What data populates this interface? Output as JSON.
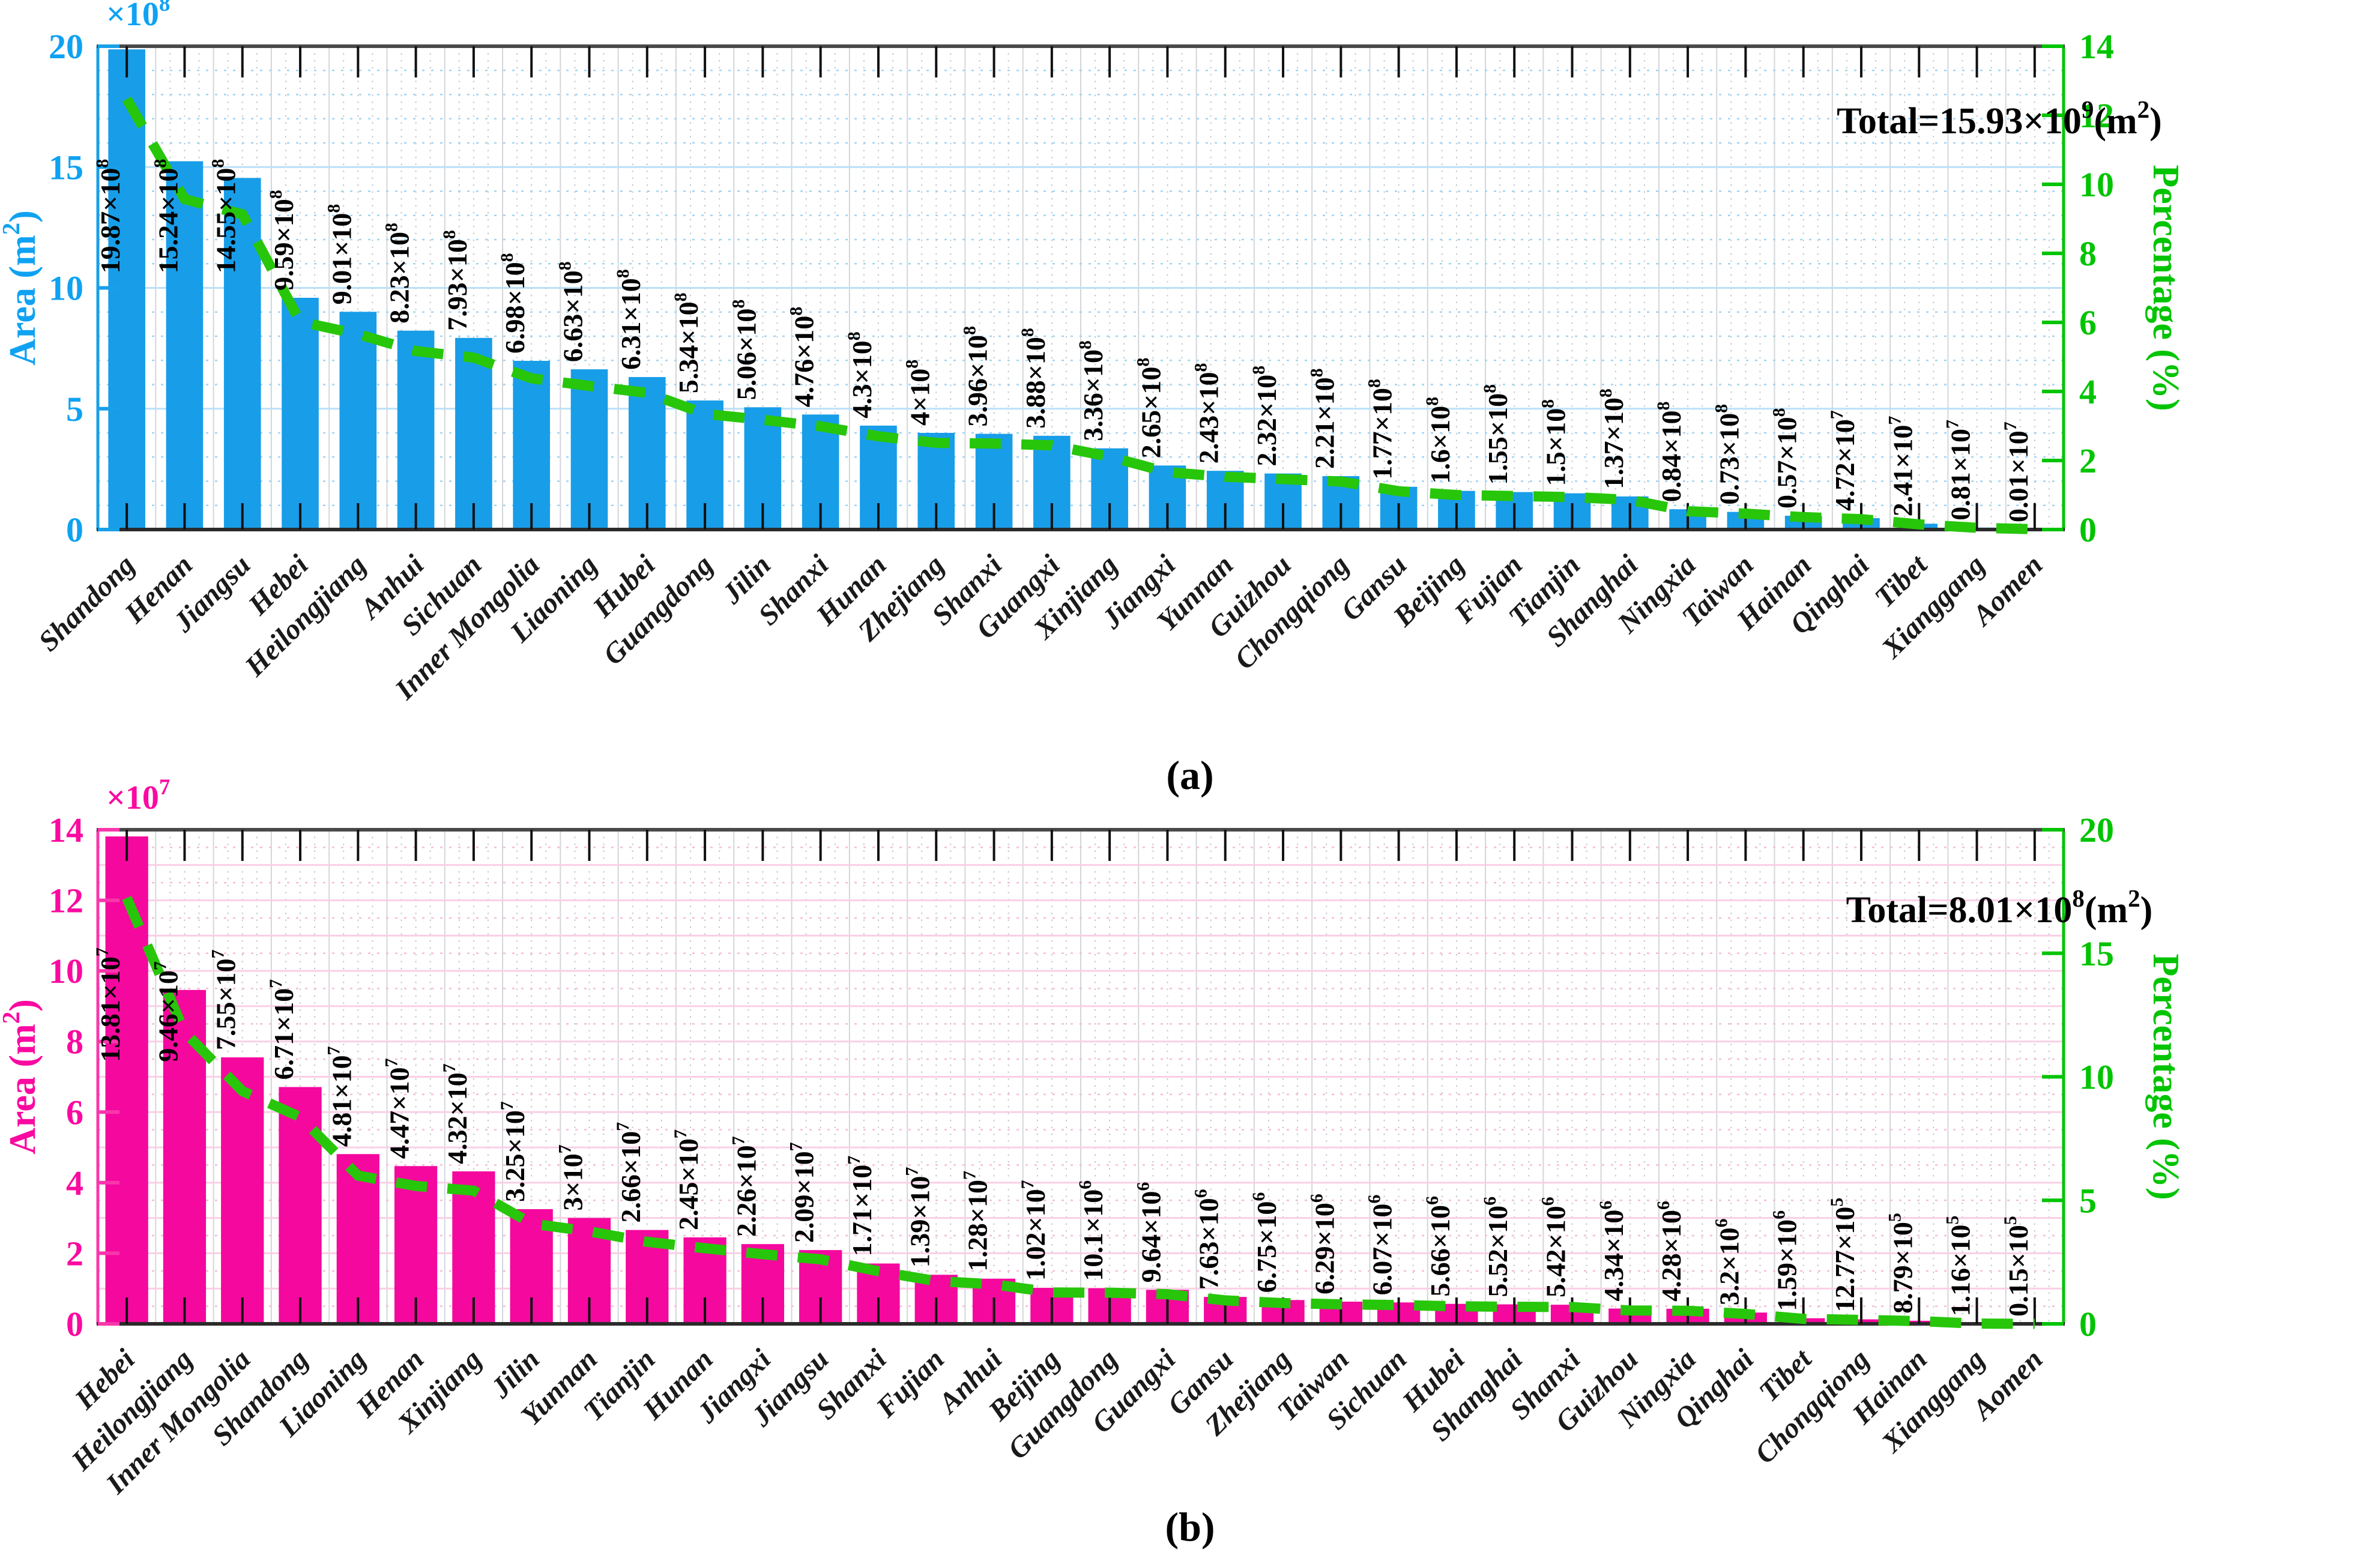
{
  "figure": {
    "caption_a": "(a)",
    "caption_b": "(b)"
  },
  "chart_data": [
    {
      "type": "bar",
      "panel": "a",
      "total_label": "Total=15.93×10^9(m^2)",
      "ylabel_left": "Area (m^2)",
      "ylabel_right": "Percentage (%)",
      "scale_label": "×10^8",
      "ylim_left": [
        0,
        20
      ],
      "yticks_left": [
        0,
        5,
        10,
        15,
        20
      ],
      "ylim_right": [
        0,
        14
      ],
      "yticks_right": [
        0,
        2,
        4,
        6,
        8,
        10,
        12,
        14
      ],
      "grid": "on",
      "legend": "none",
      "bar_color": "#189DE8",
      "axis_text_color": "#0FA2F2",
      "spine_color": "#18A0E8",
      "line_color": "#27C60A",
      "right_axis_color": "#00C400",
      "grid_major_color": "#BBE0F8",
      "grid_minor_color": "#9FD4F4",
      "categories": [
        "Shandong",
        "Henan",
        "Jiangsu",
        "Hebei",
        "Heilongjiang",
        "Anhui",
        "Sichuan",
        "Inner Mongolia",
        "Liaoning",
        "Hubei",
        "Guangdong",
        "Jilin",
        "Shanxi",
        "Hunan",
        "Zhejiang",
        "Shanxi",
        "Guangxi",
        "Xinjiang",
        "Jiangxi",
        "Yunnan",
        "Guizhou",
        "Chongqiong",
        "Gansu",
        "Beijing",
        "Fujian",
        "Tianjin",
        "Shanghai",
        "Ningxia",
        "Taiwan",
        "Hainan",
        "Qinghai",
        "Tibet",
        "Xianggang",
        "Aomen"
      ],
      "values": [
        19.87,
        15.24,
        14.55,
        9.59,
        9.01,
        8.23,
        7.93,
        6.98,
        6.63,
        6.31,
        5.34,
        5.06,
        4.76,
        4.3,
        4,
        3.96,
        3.88,
        3.36,
        2.65,
        2.43,
        2.32,
        2.21,
        1.77,
        1.6,
        1.55,
        1.5,
        1.37,
        0.84,
        0.73,
        0.57,
        0.472,
        0.241,
        0.081,
        0.001
      ],
      "value_labels": [
        "19.87×10^8",
        "15.24×10^8",
        "14.55×10^8",
        "9.59×10^8",
        "9.01×10^8",
        "8.23×10^8",
        "7.93×10^8",
        "6.98×10^8",
        "6.63×10^8",
        "6.31×10^8",
        "5.34×10^8",
        "5.06×10^8",
        "4.76×10^8",
        "4.3×10^8",
        "4×10^8",
        "3.96×10^8",
        "3.88×10^8",
        "3.36×10^8",
        "2.65×10^8",
        "2.43×10^8",
        "2.32×10^8",
        "2.21×10^8",
        "1.77×10^8",
        "1.6×10^8",
        "1.55×10^8",
        "1.5×10^8",
        "1.37×10^8",
        "0.84×10^8",
        "0.73×10^8",
        "0.57×10^8",
        "4.72×10^7",
        "2.41×10^7",
        "0.81×10^7",
        "0.01×10^7"
      ],
      "percentages": [
        12.47,
        9.57,
        9.13,
        6.02,
        5.66,
        5.17,
        4.98,
        4.38,
        4.16,
        3.96,
        3.35,
        3.18,
        2.99,
        2.7,
        2.51,
        2.49,
        2.44,
        2.11,
        1.66,
        1.53,
        1.46,
        1.39,
        1.11,
        1.0,
        0.97,
        0.94,
        0.86,
        0.53,
        0.46,
        0.36,
        0.3,
        0.15,
        0.05,
        0.01
      ]
    },
    {
      "type": "bar",
      "panel": "b",
      "total_label": "Total=8.01×10^8(m^2)",
      "ylabel_left": "Area (m^2)",
      "ylabel_right": "Percentage (%)",
      "scale_label": "×10^7",
      "ylim_left": [
        0,
        14
      ],
      "yticks_left": [
        0,
        2,
        4,
        6,
        8,
        10,
        12,
        14
      ],
      "ylim_right": [
        0,
        20
      ],
      "yticks_right": [
        0,
        5,
        10,
        15,
        20
      ],
      "grid": "on",
      "legend": "none",
      "bar_color": "#F4089E",
      "axis_text_color": "#FA0AA0",
      "spine_color": "#F837AC",
      "line_color": "#27C60A",
      "right_axis_color": "#00C400",
      "grid_major_color": "#FACFE6",
      "grid_minor_color": "#F6BBD9",
      "categories": [
        "Hebei",
        "Heilongjiang",
        "Inner Mongolia",
        "Shandong",
        "Liaoning",
        "Henan",
        "Xinjiang",
        "Jilin",
        "Yunnan",
        "Tianjin",
        "Hunan",
        "Jiangxi",
        "Jiangsu",
        "Shanxi",
        "Fujian",
        "Anhui",
        "Beijing",
        "Guangdong",
        "Guangxi",
        "Gansu",
        "Zhejiang",
        "Taiwan",
        "Sichuan",
        "Hubei",
        "Shanghai",
        "Shanxi",
        "Guizhou",
        "Ningxia",
        "Qinghai",
        "Tibet",
        "Chongqiong",
        "Hainan",
        "Xianggang",
        "Aomen"
      ],
      "values": [
        13.81,
        9.46,
        7.55,
        6.71,
        4.81,
        4.47,
        4.32,
        3.25,
        3,
        2.66,
        2.45,
        2.26,
        2.09,
        1.71,
        1.39,
        1.28,
        1.02,
        1.01,
        0.964,
        0.763,
        0.675,
        0.629,
        0.607,
        0.566,
        0.552,
        0.542,
        0.434,
        0.428,
        0.32,
        0.159,
        0.1277,
        0.0879,
        0.0116,
        0.0015
      ],
      "value_labels": [
        "13.81×10^7",
        "9.46×10^7",
        "7.55×10^7",
        "6.71×10^7",
        "4.81×10^7",
        "4.47×10^7",
        "4.32×10^7",
        "3.25×10^7",
        "3×10^7",
        "2.66×10^7",
        "2.45×10^7",
        "2.26×10^7",
        "2.09×10^7",
        "1.71×10^7",
        "1.39×10^7",
        "1.28×10^7",
        "1.02×10^7",
        "10.1×10^6",
        "9.64×10^6",
        "7.63×10^6",
        "6.75×10^6",
        "6.29×10^6",
        "6.07×10^6",
        "5.66×10^6",
        "5.52×10^6",
        "5.42×10^6",
        "4.34×10^6",
        "4.28×10^6",
        "3.2×10^6",
        "1.59×10^6",
        "12.77×10^5",
        "8.79×10^5",
        "1.16×10^5",
        "0.15×10^5"
      ],
      "percentages": [
        17.24,
        11.81,
        9.42,
        8.37,
        6.0,
        5.58,
        5.39,
        4.06,
        3.74,
        3.32,
        3.06,
        2.82,
        2.61,
        2.13,
        1.73,
        1.6,
        1.27,
        1.26,
        1.2,
        0.95,
        0.84,
        0.79,
        0.76,
        0.71,
        0.69,
        0.68,
        0.54,
        0.53,
        0.4,
        0.2,
        0.16,
        0.11,
        0.01,
        0.0
      ]
    }
  ]
}
